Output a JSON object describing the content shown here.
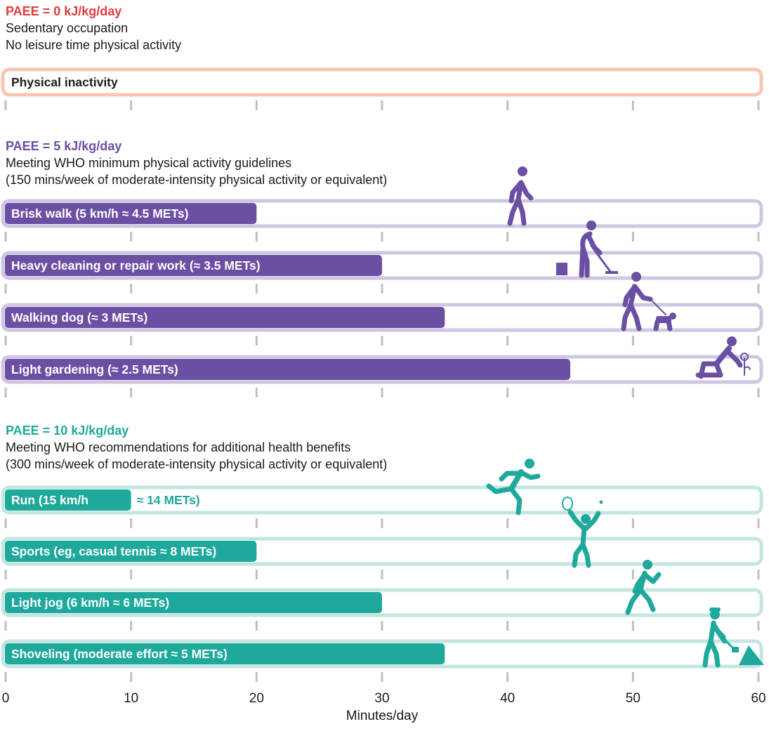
{
  "chart_data": {
    "type": "bar",
    "xlabel": "Minutes/day",
    "xlim": [
      0,
      60
    ],
    "xticks": [
      "0",
      "10",
      "20",
      "30",
      "40",
      "50",
      "60"
    ],
    "groups": [
      {
        "id": "inactive",
        "heading": "PAEE = 0 kJ/kg/day",
        "desc": [
          "Sedentary occupation",
          "No leisure time physical activity"
        ],
        "color": "#e03c3c",
        "bar_fill": "#6b4fa3",
        "outline": "#f6c7b0",
        "bars": [
          {
            "label": "Physical inactivity",
            "value": 0,
            "icon": "none"
          }
        ]
      },
      {
        "id": "paee5",
        "heading": "PAEE = 5 kJ/kg/day",
        "desc": [
          "Meeting WHO minimum physical activity guidelines",
          "(150 mins/week of moderate-intensity physical activity or equivalent)"
        ],
        "color": "#6b4fa3",
        "bar_fill": "#6b4fa3",
        "outline": "#cfc6e2",
        "bars": [
          {
            "label": "Brisk walk (5 km/h ≈ 4.5 METs)",
            "value": 20,
            "icon": "walking-person-icon"
          },
          {
            "label": "Heavy cleaning or repair work (≈ 3.5 METs)",
            "value": 30,
            "icon": "mopping-person-icon"
          },
          {
            "label": "Walking dog (≈ 3 METs)",
            "value": 35,
            "icon": "dog-walker-icon"
          },
          {
            "label": "Light gardening (≈ 2.5 METs)",
            "value": 45,
            "icon": "gardener-icon"
          }
        ]
      },
      {
        "id": "paee10",
        "heading": "PAEE = 10 kJ/kg/day",
        "desc": [
          "Meeting WHO recommendations for additional health benefits",
          "(300 mins/week of moderate-intensity physical activity or equivalent)"
        ],
        "color": "#1ea99c",
        "bar_fill": "#1ea99c",
        "outline": "#c3e6e2",
        "bars": [
          {
            "label": "Run (15 km/h",
            "label_outside": "≈ 14 METs)",
            "value": 10,
            "icon": "sprinter-icon"
          },
          {
            "label": "Sports (eg, casual tennis ≈ 8 METs)",
            "value": 20,
            "icon": "tennis-player-icon"
          },
          {
            "label": "Light jog (6 km/h ≈ 6 METs)",
            "value": 30,
            "icon": "jogger-icon"
          },
          {
            "label": "Shoveling (moderate effort ≈ 5 METs)",
            "value": 35,
            "icon": "shoveling-person-icon"
          }
        ]
      }
    ]
  }
}
